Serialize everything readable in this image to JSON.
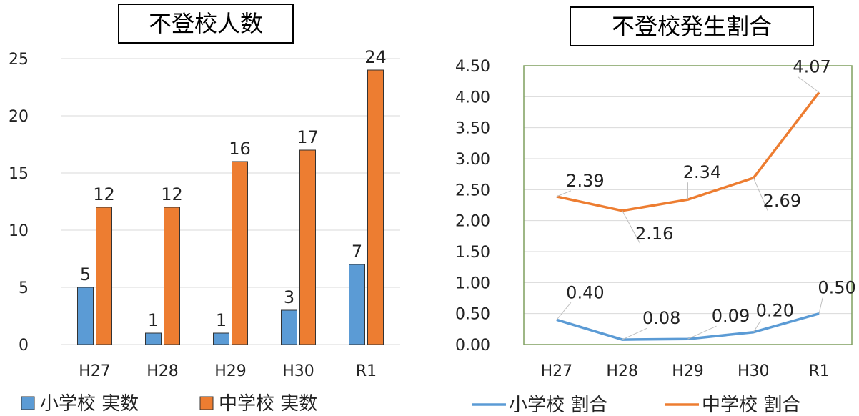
{
  "chart_data": [
    {
      "type": "bar",
      "title": "不登校人数",
      "categories": [
        "H27",
        "H28",
        "H29",
        "H30",
        "R1"
      ],
      "series": [
        {
          "name": "小学校 実数",
          "values": [
            5,
            1,
            1,
            3,
            7
          ],
          "color": "#5B9BD5"
        },
        {
          "name": "中学校 実数",
          "values": [
            12,
            12,
            16,
            17,
            24
          ],
          "color": "#ED7D31"
        }
      ],
      "ylim": [
        0,
        25
      ],
      "yticks": [
        "0",
        "5",
        "10",
        "15",
        "20",
        "25"
      ],
      "grid": true,
      "legend": "bottom",
      "xlabel": "",
      "ylabel": ""
    },
    {
      "type": "line",
      "title": "不登校発生割合",
      "categories": [
        "H27",
        "H28",
        "H29",
        "H30",
        "R1"
      ],
      "series": [
        {
          "name": "小学校 割合",
          "values": [
            0.4,
            0.08,
            0.09,
            0.2,
            0.5
          ],
          "labels": [
            "0.40",
            "0.08",
            "0.09",
            "0.20",
            "0.50"
          ],
          "color": "#5B9BD5"
        },
        {
          "name": "中学校 割合",
          "values": [
            2.39,
            2.16,
            2.34,
            2.69,
            4.07
          ],
          "labels": [
            "2.39",
            "2.16",
            "2.34",
            "2.69",
            "4.07"
          ],
          "color": "#ED7D31"
        }
      ],
      "ylim": [
        0,
        4.5
      ],
      "yticks": [
        "0.00",
        "0.50",
        "1.00",
        "1.50",
        "2.00",
        "2.50",
        "3.00",
        "3.50",
        "4.00",
        "4.50"
      ],
      "grid": true,
      "legend": "bottom",
      "xlabel": "",
      "ylabel": ""
    }
  ]
}
